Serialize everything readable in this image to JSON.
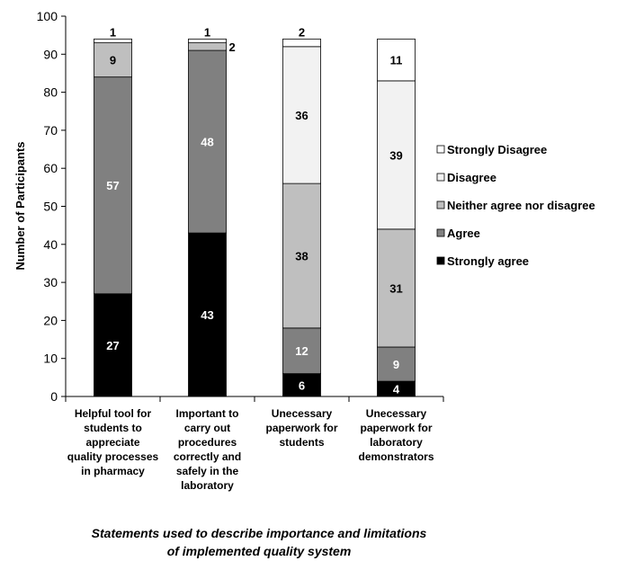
{
  "chart_data": {
    "type": "bar",
    "stacked": true,
    "ylabel": "Number of Participants",
    "xlabel_lines": [
      "Statements used to describe importance and limitations",
      "of implemented quality system"
    ],
    "ylim": [
      0,
      100
    ],
    "yticks": [
      0,
      10,
      20,
      30,
      40,
      50,
      60,
      70,
      80,
      90,
      100
    ],
    "legend_position": "right",
    "grid": false,
    "categories": [
      {
        "lines": [
          "Helpful tool for",
          "students to",
          "appreciate",
          "quality processes",
          "in pharmacy"
        ]
      },
      {
        "lines": [
          "Important to",
          "carry out",
          "procedures",
          "correctly and",
          "safely in the",
          "laboratory"
        ]
      },
      {
        "lines": [
          "Unecessary",
          "paperwork for",
          "students"
        ]
      },
      {
        "lines": [
          "Unecessary",
          "paperwork for",
          "laboratory",
          "demonstrators"
        ]
      }
    ],
    "series": [
      {
        "name": "Strongly agree",
        "color": "#000000",
        "label_color": "#ffffff",
        "values": [
          27,
          43,
          6,
          4
        ]
      },
      {
        "name": "Agree",
        "color": "#808080",
        "label_color": "#ffffff",
        "values": [
          57,
          48,
          12,
          9
        ]
      },
      {
        "name": "Neither agree nor disagree",
        "color": "#bfbfbf",
        "label_color": "#000000",
        "values": [
          9,
          2,
          38,
          31
        ]
      },
      {
        "name": "Disagree",
        "color": "#f2f2f2",
        "label_color": "#000000",
        "values": [
          0,
          0,
          36,
          39
        ]
      },
      {
        "name": "Strongly Disagree",
        "color": "#ffffff",
        "label_color": "#000000",
        "values": [
          1,
          1,
          2,
          11
        ]
      }
    ],
    "data_labels": [
      {
        "category": 0,
        "series": 0,
        "text": "27"
      },
      {
        "category": 0,
        "series": 1,
        "text": "57"
      },
      {
        "category": 0,
        "series": 2,
        "text": "9"
      },
      {
        "category": 0,
        "series": 4,
        "text": "1"
      },
      {
        "category": 1,
        "series": 0,
        "text": "43"
      },
      {
        "category": 1,
        "series": 1,
        "text": "48"
      },
      {
        "category": 1,
        "series": 2,
        "text": "2"
      },
      {
        "category": 1,
        "series": 4,
        "text": "1"
      },
      {
        "category": 2,
        "series": 0,
        "text": "6"
      },
      {
        "category": 2,
        "series": 1,
        "text": "12"
      },
      {
        "category": 2,
        "series": 2,
        "text": "38"
      },
      {
        "category": 2,
        "series": 3,
        "text": "36"
      },
      {
        "category": 2,
        "series": 4,
        "text": "2"
      },
      {
        "category": 3,
        "series": 0,
        "text": "4"
      },
      {
        "category": 3,
        "series": 1,
        "text": "9"
      },
      {
        "category": 3,
        "series": 2,
        "text": "31"
      },
      {
        "category": 3,
        "series": 3,
        "text": "39"
      },
      {
        "category": 3,
        "series": 4,
        "text": "11"
      }
    ],
    "legend_order": [
      4,
      3,
      2,
      1,
      0
    ]
  }
}
